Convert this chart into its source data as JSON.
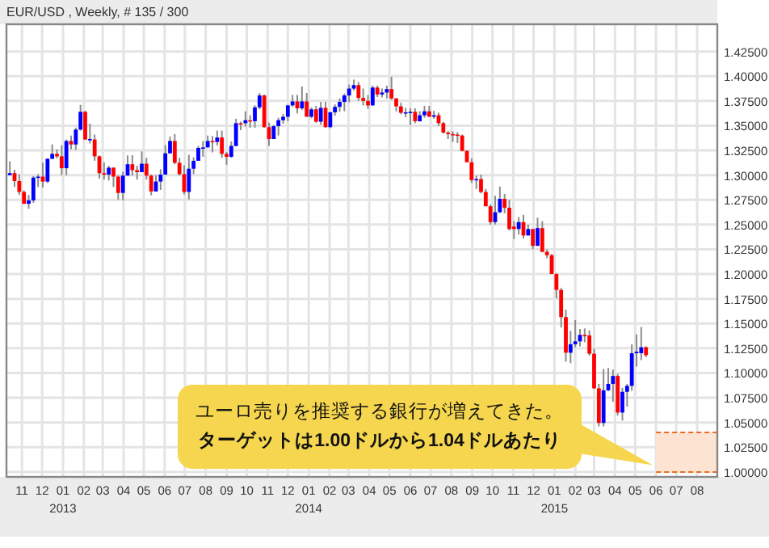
{
  "chart_data": {
    "type": "candlestick",
    "title": "EUR/USD , Weekly, # 135 / 300",
    "x": [
      "2012-10-14",
      "2012-10-21",
      "2012-10-28",
      "2012-11-04",
      "2012-11-11",
      "2012-11-18",
      "2012-11-25",
      "2012-12-02",
      "2012-12-09",
      "2012-12-16",
      "2012-12-23",
      "2012-12-30",
      "2013-01-06",
      "2013-01-13",
      "2013-01-20",
      "2013-01-27",
      "2013-02-03",
      "2013-02-10",
      "2013-02-17",
      "2013-02-24",
      "2013-03-03",
      "2013-03-10",
      "2013-03-17",
      "2013-03-24",
      "2013-03-31",
      "2013-04-07",
      "2013-04-14",
      "2013-04-21",
      "2013-04-28",
      "2013-05-05",
      "2013-05-12",
      "2013-05-19",
      "2013-05-26",
      "2013-06-02",
      "2013-06-09",
      "2013-06-16",
      "2013-06-23",
      "2013-06-30",
      "2013-07-07",
      "2013-07-14",
      "2013-07-21",
      "2013-07-28",
      "2013-08-04",
      "2013-08-11",
      "2013-08-18",
      "2013-08-25",
      "2013-09-01",
      "2013-09-08",
      "2013-09-15",
      "2013-09-22",
      "2013-09-29",
      "2013-10-06",
      "2013-10-13",
      "2013-10-20",
      "2013-10-27",
      "2013-11-03",
      "2013-11-10",
      "2013-11-17",
      "2013-11-24",
      "2013-12-01",
      "2013-12-08",
      "2013-12-15",
      "2013-12-22",
      "2013-12-29",
      "2014-01-05",
      "2014-01-12",
      "2014-01-19",
      "2014-01-26",
      "2014-02-02",
      "2014-02-09",
      "2014-02-16",
      "2014-02-23",
      "2014-03-02",
      "2014-03-09",
      "2014-03-16",
      "2014-03-23",
      "2014-03-30",
      "2014-04-06",
      "2014-04-13",
      "2014-04-20",
      "2014-04-27",
      "2014-05-04",
      "2014-05-11",
      "2014-05-18",
      "2014-05-25",
      "2014-06-01",
      "2014-06-08",
      "2014-06-15",
      "2014-06-22",
      "2014-06-29",
      "2014-07-06",
      "2014-07-13",
      "2014-07-20",
      "2014-07-27",
      "2014-08-03",
      "2014-08-10",
      "2014-08-17",
      "2014-08-24",
      "2014-08-31",
      "2014-09-07",
      "2014-09-14",
      "2014-09-21",
      "2014-09-28",
      "2014-10-05",
      "2014-10-12",
      "2014-10-19",
      "2014-10-26",
      "2014-11-02",
      "2014-11-09",
      "2014-11-16",
      "2014-11-23",
      "2014-11-30",
      "2014-12-07",
      "2014-12-14",
      "2014-12-21",
      "2014-12-28",
      "2015-01-04",
      "2015-01-11",
      "2015-01-18",
      "2015-01-25",
      "2015-02-01",
      "2015-02-08",
      "2015-02-15",
      "2015-02-22",
      "2015-03-01",
      "2015-03-08",
      "2015-03-15",
      "2015-03-22",
      "2015-03-29",
      "2015-04-05",
      "2015-04-12",
      "2015-04-19",
      "2015-04-26",
      "2015-05-03",
      "2015-05-10",
      "2015-05-17"
    ],
    "ohlc": [
      [
        1.3,
        1.314,
        1.3,
        1.302
      ],
      [
        1.302,
        1.3055,
        1.288,
        1.294
      ],
      [
        1.294,
        1.301,
        1.28,
        1.283
      ],
      [
        1.283,
        1.2845,
        1.271,
        1.271
      ],
      [
        1.271,
        1.28,
        1.266,
        1.2745
      ],
      [
        1.2745,
        1.299,
        1.272,
        1.2975
      ],
      [
        1.2975,
        1.301,
        1.288,
        1.2985
      ],
      [
        1.2985,
        1.3125,
        1.2875,
        1.2935
      ],
      [
        1.2935,
        1.317,
        1.292,
        1.3165
      ],
      [
        1.3165,
        1.331,
        1.316,
        1.3215
      ],
      [
        1.3215,
        1.326,
        1.317,
        1.319
      ],
      [
        1.319,
        1.33,
        1.3,
        1.307
      ],
      [
        1.307,
        1.336,
        1.3,
        1.3345
      ],
      [
        1.3345,
        1.34,
        1.326,
        1.331
      ],
      [
        1.331,
        1.348,
        1.3255,
        1.346
      ],
      [
        1.346,
        1.371,
        1.345,
        1.364
      ],
      [
        1.364,
        1.365,
        1.3355,
        1.336
      ],
      [
        1.336,
        1.352,
        1.332,
        1.3365
      ],
      [
        1.336,
        1.341,
        1.3145,
        1.319
      ],
      [
        1.319,
        1.32,
        1.2965,
        1.302
      ],
      [
        1.302,
        1.313,
        1.2955,
        1.3005
      ],
      [
        1.3005,
        1.3095,
        1.2945,
        1.3075
      ],
      [
        1.3075,
        1.308,
        1.288,
        1.2985
      ],
      [
        1.2985,
        1.3,
        1.275,
        1.282
      ],
      [
        1.282,
        1.3035,
        1.2745,
        1.2995
      ],
      [
        1.2995,
        1.32,
        1.2995,
        1.311
      ],
      [
        1.311,
        1.32,
        1.2995,
        1.305
      ],
      [
        1.305,
        1.3095,
        1.2955,
        1.303
      ],
      [
        1.303,
        1.324,
        1.303,
        1.3115
      ],
      [
        1.3115,
        1.3175,
        1.2955,
        1.2995
      ],
      [
        1.2995,
        1.3005,
        1.2795,
        1.2835
      ],
      [
        1.2835,
        1.3,
        1.2835,
        1.2935
      ],
      [
        1.2935,
        1.306,
        1.285,
        1.3005
      ],
      [
        1.3005,
        1.3305,
        1.3005,
        1.322
      ],
      [
        1.322,
        1.339,
        1.322,
        1.3345
      ],
      [
        1.3345,
        1.3415,
        1.311,
        1.3125
      ],
      [
        1.3125,
        1.3175,
        1.2995,
        1.301
      ],
      [
        1.301,
        1.31,
        1.2805,
        1.283
      ],
      [
        1.283,
        1.3205,
        1.2755,
        1.3065
      ],
      [
        1.3065,
        1.318,
        1.301,
        1.3145
      ],
      [
        1.3145,
        1.3295,
        1.3145,
        1.3275
      ],
      [
        1.3275,
        1.3345,
        1.3185,
        1.328
      ],
      [
        1.328,
        1.34,
        1.328,
        1.3345
      ],
      [
        1.3345,
        1.3395,
        1.323,
        1.3335
      ],
      [
        1.3335,
        1.345,
        1.33,
        1.338
      ],
      [
        1.338,
        1.345,
        1.3175,
        1.3215
      ],
      [
        1.3215,
        1.3235,
        1.3105,
        1.3185
      ],
      [
        1.3185,
        1.334,
        1.3175,
        1.3295
      ],
      [
        1.3295,
        1.357,
        1.329,
        1.3525
      ],
      [
        1.3525,
        1.354,
        1.3455,
        1.352
      ],
      [
        1.3525,
        1.3645,
        1.349,
        1.3555
      ],
      [
        1.3555,
        1.3605,
        1.348,
        1.3545
      ],
      [
        1.3545,
        1.3705,
        1.348,
        1.3685
      ],
      [
        1.3685,
        1.383,
        1.3665,
        1.3805
      ],
      [
        1.3805,
        1.3815,
        1.348,
        1.3485
      ],
      [
        1.3485,
        1.353,
        1.3295,
        1.3365
      ],
      [
        1.3365,
        1.3505,
        1.3365,
        1.3495
      ],
      [
        1.3495,
        1.358,
        1.34,
        1.3555
      ],
      [
        1.3555,
        1.362,
        1.352,
        1.359
      ],
      [
        1.359,
        1.371,
        1.3545,
        1.3705
      ],
      [
        1.3705,
        1.381,
        1.369,
        1.3745
      ],
      [
        1.3745,
        1.381,
        1.3625,
        1.3675
      ],
      [
        1.3675,
        1.3895,
        1.366,
        1.3745
      ],
      [
        1.3745,
        1.383,
        1.359,
        1.359
      ],
      [
        1.359,
        1.3685,
        1.3575,
        1.3665
      ],
      [
        1.3665,
        1.37,
        1.353,
        1.354
      ],
      [
        1.354,
        1.374,
        1.351,
        1.368
      ],
      [
        1.368,
        1.374,
        1.348,
        1.3485
      ],
      [
        1.3485,
        1.364,
        1.3475,
        1.3635
      ],
      [
        1.3635,
        1.3715,
        1.36,
        1.369
      ],
      [
        1.369,
        1.3775,
        1.364,
        1.374
      ],
      [
        1.374,
        1.3825,
        1.3645,
        1.3805
      ],
      [
        1.3805,
        1.3915,
        1.3735,
        1.3875
      ],
      [
        1.3875,
        1.3965,
        1.3855,
        1.391
      ],
      [
        1.391,
        1.394,
        1.375,
        1.378
      ],
      [
        1.378,
        1.3875,
        1.3705,
        1.375
      ],
      [
        1.375,
        1.381,
        1.367,
        1.3705
      ],
      [
        1.3705,
        1.3905,
        1.37,
        1.3885
      ],
      [
        1.3885,
        1.3905,
        1.379,
        1.3815
      ],
      [
        1.3815,
        1.3875,
        1.3785,
        1.3835
      ],
      [
        1.3835,
        1.3905,
        1.3775,
        1.387
      ],
      [
        1.387,
        1.3995,
        1.376,
        1.3775
      ],
      [
        1.3775,
        1.378,
        1.3645,
        1.3695
      ],
      [
        1.3695,
        1.373,
        1.3615,
        1.363
      ],
      [
        1.363,
        1.368,
        1.3585,
        1.3635
      ],
      [
        1.3635,
        1.3675,
        1.3505,
        1.364
      ],
      [
        1.364,
        1.3675,
        1.3525,
        1.3545
      ],
      [
        1.3545,
        1.3645,
        1.354,
        1.3605
      ],
      [
        1.3605,
        1.37,
        1.358,
        1.3645
      ],
      [
        1.3645,
        1.37,
        1.359,
        1.359
      ],
      [
        1.359,
        1.365,
        1.357,
        1.3605
      ],
      [
        1.3605,
        1.363,
        1.3495,
        1.3525
      ],
      [
        1.3525,
        1.354,
        1.342,
        1.343
      ],
      [
        1.343,
        1.3445,
        1.3365,
        1.3415
      ],
      [
        1.3415,
        1.3445,
        1.3335,
        1.341
      ],
      [
        1.341,
        1.3435,
        1.3325,
        1.34
      ],
      [
        1.34,
        1.341,
        1.324,
        1.3245
      ],
      [
        1.3245,
        1.325,
        1.313,
        1.313
      ],
      [
        1.313,
        1.317,
        1.292,
        1.295
      ],
      [
        1.295,
        1.2995,
        1.286,
        1.296
      ],
      [
        1.296,
        1.3005,
        1.2815,
        1.283
      ],
      [
        1.283,
        1.286,
        1.2685,
        1.2685
      ],
      [
        1.2685,
        1.2705,
        1.25,
        1.2525
      ],
      [
        1.2525,
        1.279,
        1.25,
        1.2625
      ],
      [
        1.2625,
        1.2885,
        1.2615,
        1.276
      ],
      [
        1.276,
        1.281,
        1.2615,
        1.267
      ],
      [
        1.267,
        1.275,
        1.244,
        1.2455
      ],
      [
        1.248,
        1.2535,
        1.2355,
        1.2455
      ],
      [
        1.2455,
        1.2575,
        1.24,
        1.2525
      ],
      [
        1.2525,
        1.26,
        1.236,
        1.239
      ],
      [
        1.239,
        1.25,
        1.239,
        1.2455
      ],
      [
        1.2455,
        1.2455,
        1.225,
        1.2285
      ],
      [
        1.2285,
        1.257,
        1.2285,
        1.2465
      ],
      [
        1.2465,
        1.2535,
        1.222,
        1.2225
      ],
      [
        1.2225,
        1.225,
        1.216,
        1.219
      ],
      [
        1.219,
        1.2205,
        1.2,
        1.2
      ],
      [
        1.2,
        1.201,
        1.1755,
        1.184
      ],
      [
        1.184,
        1.186,
        1.146,
        1.1565
      ],
      [
        1.1565,
        1.164,
        1.1115,
        1.1205
      ],
      [
        1.1205,
        1.1425,
        1.11,
        1.129
      ],
      [
        1.129,
        1.1535,
        1.126,
        1.132
      ],
      [
        1.132,
        1.1445,
        1.127,
        1.1385
      ],
      [
        1.1385,
        1.145,
        1.131,
        1.138
      ],
      [
        1.138,
        1.143,
        1.1175,
        1.1195
      ],
      [
        1.1195,
        1.1245,
        1.084,
        1.0845
      ],
      [
        1.0845,
        1.089,
        1.046,
        1.0495
      ],
      [
        1.0495,
        1.104,
        1.046,
        1.0825
      ],
      [
        1.0825,
        1.105,
        1.0815,
        1.089
      ],
      [
        1.089,
        1.1035,
        1.071,
        1.097
      ],
      [
        1.097,
        1.099,
        1.057,
        1.06
      ],
      [
        1.06,
        1.085,
        1.052,
        1.081
      ],
      [
        1.081,
        1.089,
        1.066,
        1.087
      ],
      [
        1.087,
        1.129,
        1.082,
        1.12
      ],
      [
        1.12,
        1.139,
        1.1065,
        1.1215
      ],
      [
        1.12,
        1.1465,
        1.113,
        1.126
      ],
      [
        1.126,
        1.127,
        1.116,
        1.118
      ]
    ],
    "xlim": [
      "2012-10-09",
      "2015-08-31"
    ],
    "xticks": [
      {
        "value": "2012-11-01",
        "label": "11"
      },
      {
        "value": "2012-12-01",
        "label": "12"
      },
      {
        "value": "2013-01-01",
        "label": "01"
      },
      {
        "value": "2013-02-01",
        "label": "02"
      },
      {
        "value": "2013-03-01",
        "label": "03"
      },
      {
        "value": "2013-04-01",
        "label": "04"
      },
      {
        "value": "2013-05-01",
        "label": "05"
      },
      {
        "value": "2013-06-01",
        "label": "06"
      },
      {
        "value": "2013-07-01",
        "label": "07"
      },
      {
        "value": "2013-08-01",
        "label": "08"
      },
      {
        "value": "2013-09-01",
        "label": "09"
      },
      {
        "value": "2013-10-01",
        "label": "10"
      },
      {
        "value": "2013-11-01",
        "label": "11"
      },
      {
        "value": "2013-12-01",
        "label": "12"
      },
      {
        "value": "2014-01-01",
        "label": "01"
      },
      {
        "value": "2014-02-01",
        "label": "02"
      },
      {
        "value": "2014-03-01",
        "label": "03"
      },
      {
        "value": "2014-04-01",
        "label": "04"
      },
      {
        "value": "2014-05-01",
        "label": "05"
      },
      {
        "value": "2014-06-01",
        "label": "06"
      },
      {
        "value": "2014-07-01",
        "label": "07"
      },
      {
        "value": "2014-08-01",
        "label": "08"
      },
      {
        "value": "2014-09-01",
        "label": "09"
      },
      {
        "value": "2014-10-01",
        "label": "10"
      },
      {
        "value": "2014-11-01",
        "label": "11"
      },
      {
        "value": "2014-12-01",
        "label": "12"
      },
      {
        "value": "2015-01-01",
        "label": "01"
      },
      {
        "value": "2015-02-01",
        "label": "02"
      },
      {
        "value": "2015-03-01",
        "label": "03"
      },
      {
        "value": "2015-04-01",
        "label": "04"
      },
      {
        "value": "2015-05-01",
        "label": "05"
      },
      {
        "value": "2015-06-01",
        "label": "06"
      },
      {
        "value": "2015-07-01",
        "label": "07"
      },
      {
        "value": "2015-08-01",
        "label": "08"
      }
    ],
    "ylim": [
      0.995,
      1.4525
    ],
    "yticks": [
      {
        "value": 1.0,
        "label": "1.00000"
      },
      {
        "value": 1.025,
        "label": "1.02500"
      },
      {
        "value": 1.05,
        "label": "1.05000"
      },
      {
        "value": 1.075,
        "label": "1.07500"
      },
      {
        "value": 1.1,
        "label": "1.10000"
      },
      {
        "value": 1.125,
        "label": "1.12500"
      },
      {
        "value": 1.15,
        "label": "1.15000"
      },
      {
        "value": 1.175,
        "label": "1.17500"
      },
      {
        "value": 1.2,
        "label": "1.20000"
      },
      {
        "value": 1.225,
        "label": "1.22500"
      },
      {
        "value": 1.25,
        "label": "1.25000"
      },
      {
        "value": 1.275,
        "label": "1.27500"
      },
      {
        "value": 1.3,
        "label": "1.30000"
      },
      {
        "value": 1.325,
        "label": "1.32500"
      },
      {
        "value": 1.35,
        "label": "1.35000"
      },
      {
        "value": 1.375,
        "label": "1.37500"
      },
      {
        "value": 1.4,
        "label": "1.40000"
      },
      {
        "value": 1.425,
        "label": "1.42500"
      }
    ],
    "grid": true,
    "bands": [
      {
        "axis": "y",
        "from": 1.0,
        "to": 1.04,
        "color": "#fde3d2"
      }
    ],
    "ref_lines": [
      {
        "axis": "y",
        "value": 1.0,
        "color": "#f26b1d",
        "line_style": "dashed"
      },
      {
        "axis": "y",
        "value": 1.04,
        "color": "#f26b1d",
        "line_style": "dashed"
      }
    ],
    "annotations": [
      "2013",
      "2014",
      "2015",
      "ユーロ売りを推奨する銀行が増えてきた。",
      "ターゲットは1.00ドルから1.04ドルあたり"
    ]
  }
}
